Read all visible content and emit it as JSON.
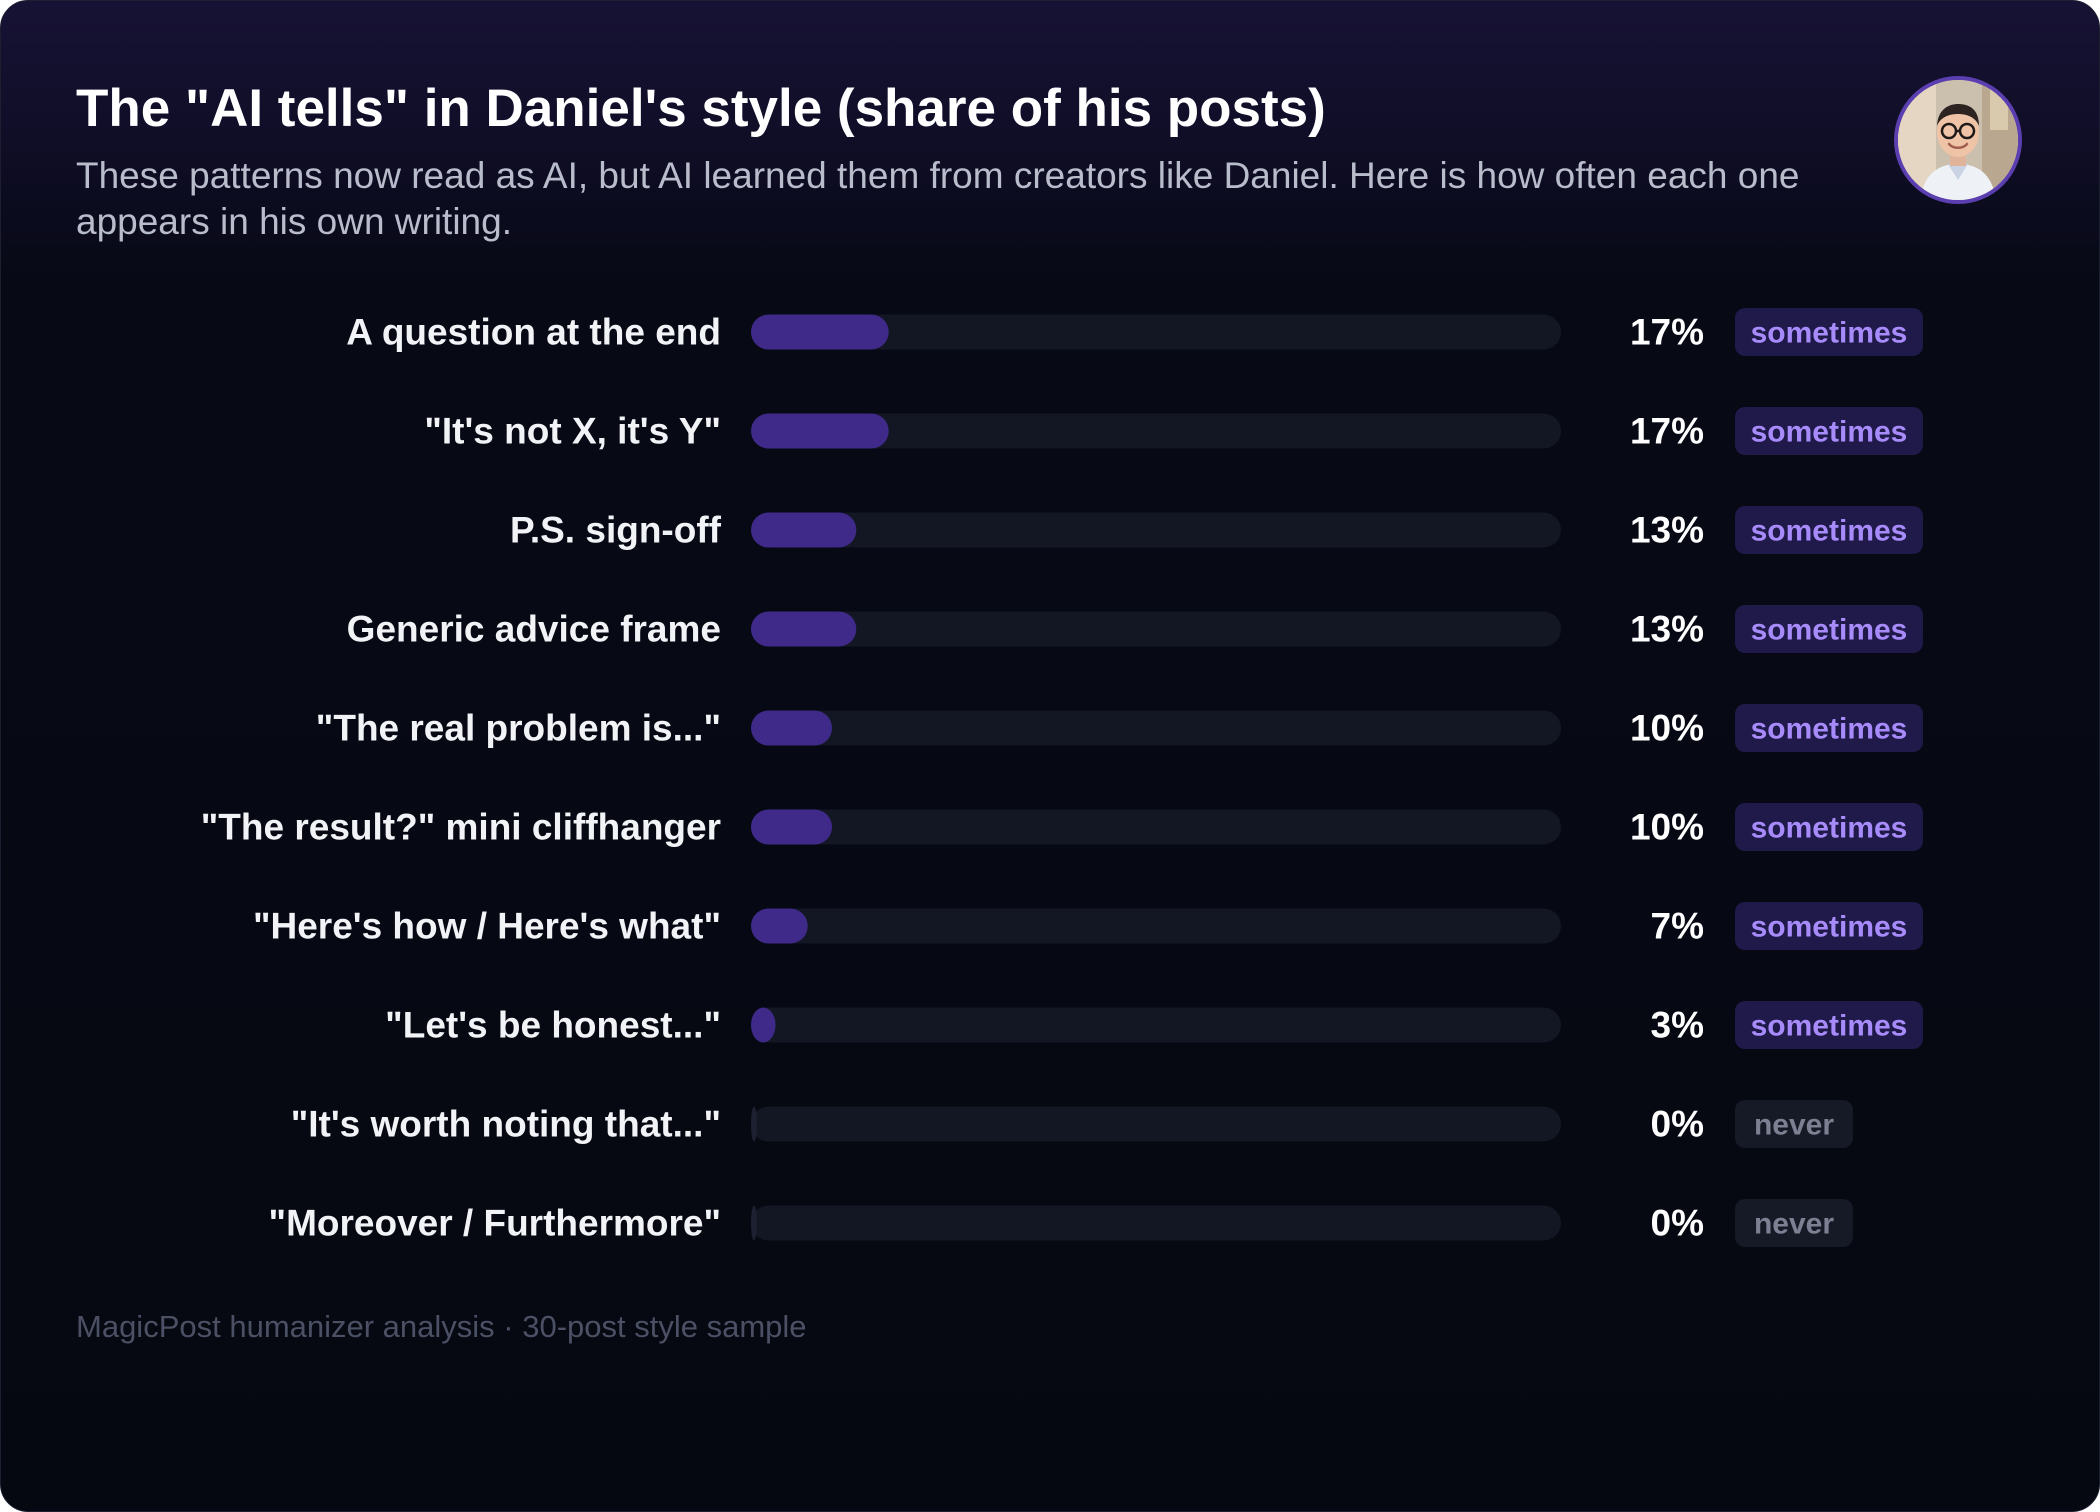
{
  "header": {
    "title": "The \"AI tells\" in Daniel's style (share of his posts)",
    "subtitle": "These patterns now read as AI, but AI learned them from creators like Daniel. Here is how often each one appears in his own writing."
  },
  "avatar": {
    "icon": "profile-photo"
  },
  "footer": {
    "source": "MagicPost humanizer analysis · 30-post style sample"
  },
  "colors": {
    "bar_fill": "#3f2a8a",
    "track": "#131724",
    "badge_sometimes_bg": "#201a4a",
    "badge_sometimes_text": "#a78bfa",
    "badge_never_bg": "#161a26",
    "badge_never_text": "#7c8092"
  },
  "chart_data": {
    "type": "bar",
    "orientation": "horizontal",
    "categories": [
      "A question at the end",
      "\"It's not X, it's Y\"",
      "P.S. sign-off",
      "Generic advice frame",
      "\"The real problem is...\"",
      "\"The result?\" mini cliffhanger",
      "\"Here's how / Here's what\"",
      "\"Let's be honest...\"",
      "\"It's worth noting that...\"",
      "\"Moreover / Furthermore\""
    ],
    "values": [
      17,
      17,
      13,
      13,
      10,
      10,
      7,
      3,
      0,
      0
    ],
    "value_labels": [
      "17%",
      "17%",
      "13%",
      "13%",
      "10%",
      "10%",
      "7%",
      "3%",
      "0%",
      "0%"
    ],
    "badges": [
      "sometimes",
      "sometimes",
      "sometimes",
      "sometimes",
      "sometimes",
      "sometimes",
      "sometimes",
      "sometimes",
      "never",
      "never"
    ],
    "xlim": [
      0,
      100
    ],
    "unit": "%",
    "grid": false,
    "legend": "none"
  }
}
